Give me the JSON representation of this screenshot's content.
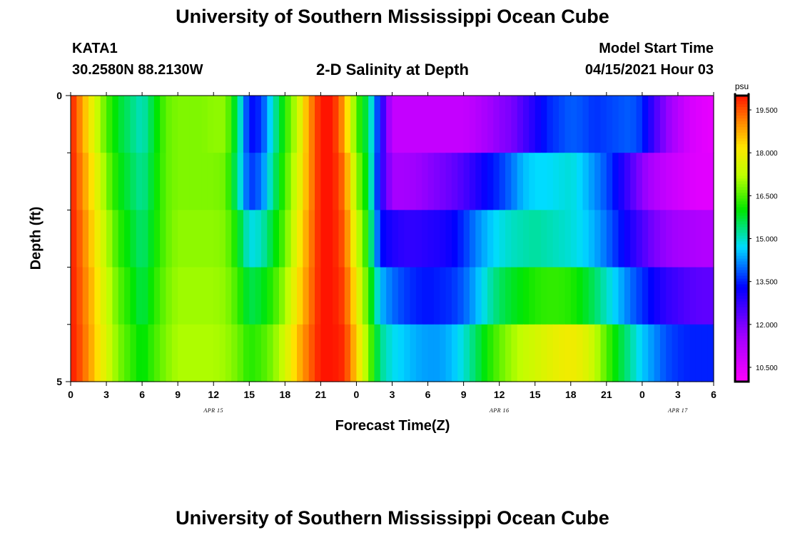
{
  "page": {
    "title_top": "University of Southern Mississippi Ocean Cube",
    "title_bottom": "University of Southern Mississippi Ocean Cube",
    "station_id": "KATA1",
    "station_coords": "30.2580N  88.2130W",
    "plot_title": "2-D Salinity at Depth",
    "model_label": "Model Start Time",
    "model_start": "04/15/2021 Hour 03"
  },
  "chart_data": {
    "type": "heatmap",
    "title": "2-D Salinity at Depth",
    "xlabel": "Forecast Time(Z)",
    "ylabel": "Depth (ft)",
    "x_range_hours": [
      0,
      54
    ],
    "x_ticks": [
      {
        "h": 0,
        "label": "0"
      },
      {
        "h": 3,
        "label": "3"
      },
      {
        "h": 6,
        "label": "6"
      },
      {
        "h": 9,
        "label": "9"
      },
      {
        "h": 12,
        "label": "12"
      },
      {
        "h": 15,
        "label": "15"
      },
      {
        "h": 18,
        "label": "18"
      },
      {
        "h": 21,
        "label": "21"
      },
      {
        "h": 24,
        "label": "0"
      },
      {
        "h": 27,
        "label": "3"
      },
      {
        "h": 30,
        "label": "6"
      },
      {
        "h": 33,
        "label": "9"
      },
      {
        "h": 36,
        "label": "12"
      },
      {
        "h": 39,
        "label": "15"
      },
      {
        "h": 42,
        "label": "18"
      },
      {
        "h": 45,
        "label": "21"
      },
      {
        "h": 48,
        "label": "0"
      },
      {
        "h": 51,
        "label": "3"
      },
      {
        "h": 54,
        "label": "6"
      }
    ],
    "date_labels": [
      {
        "h": 12,
        "label": "APR 15"
      },
      {
        "h": 36,
        "label": "APR 16"
      },
      {
        "h": 51,
        "label": "APR 17"
      }
    ],
    "y_range_ft": [
      0,
      5
    ],
    "y_tick_labels": [
      {
        "ft": 0,
        "label": "0"
      },
      {
        "ft": 5,
        "label": "5"
      }
    ],
    "y_minor_ticks_ft": [
      1,
      2,
      3,
      4
    ],
    "layers_ft": [
      0,
      1,
      2,
      3,
      4,
      5
    ],
    "key_hours": [
      0,
      1,
      2,
      3,
      4,
      6,
      7,
      8,
      9,
      10,
      11,
      12,
      13,
      14,
      15,
      16,
      17,
      18,
      19,
      20,
      21,
      22,
      23,
      24,
      25,
      26,
      27,
      28,
      29,
      30,
      31,
      32,
      33,
      34,
      35,
      36,
      37,
      38,
      39,
      40,
      41,
      42,
      43,
      44,
      45,
      46,
      47,
      48,
      49,
      50,
      51,
      52,
      53,
      54
    ],
    "salinity_psu": [
      [
        20.0,
        18.8,
        17.6,
        16.5,
        15.8,
        15.0,
        15.8,
        16.6,
        16.8,
        16.8,
        16.8,
        16.9,
        16.9,
        15.5,
        13.3,
        13.6,
        15.0,
        16.2,
        17.3,
        18.9,
        20.0,
        20.0,
        18.8,
        16.5,
        15.5,
        13.2,
        11.0,
        11.0,
        11.0,
        11.0,
        11.0,
        11.0,
        11.0,
        11.2,
        11.5,
        11.8,
        12.0,
        12.5,
        13.0,
        13.5,
        13.7,
        13.9,
        13.8,
        13.6,
        13.7,
        13.8,
        13.9,
        13.6,
        12.6,
        11.8,
        11.2,
        10.7,
        10.5,
        10.4
      ],
      [
        20.0,
        19.0,
        18.0,
        16.8,
        16.0,
        15.2,
        15.9,
        16.6,
        16.8,
        16.8,
        16.8,
        16.8,
        16.7,
        15.3,
        13.6,
        14.0,
        15.3,
        16.4,
        17.5,
        18.9,
        20.0,
        20.0,
        19.2,
        17.0,
        15.7,
        13.0,
        11.5,
        11.5,
        11.6,
        11.8,
        12.0,
        12.2,
        12.5,
        12.9,
        13.3,
        13.6,
        14.0,
        14.5,
        14.7,
        14.7,
        14.8,
        14.9,
        14.6,
        14.2,
        13.8,
        13.2,
        12.5,
        11.8,
        11.3,
        11.0,
        10.8,
        10.6,
        10.5,
        10.5
      ],
      [
        20.0,
        19.2,
        18.2,
        17.2,
        16.3,
        15.4,
        16.0,
        16.6,
        16.9,
        16.9,
        16.9,
        16.9,
        16.8,
        16.0,
        14.8,
        15.0,
        15.8,
        16.6,
        17.8,
        19.0,
        20.0,
        20.0,
        19.4,
        17.5,
        16.0,
        13.4,
        13.0,
        12.8,
        12.8,
        12.9,
        13.0,
        13.2,
        13.6,
        14.1,
        14.5,
        14.8,
        15.0,
        15.1,
        15.2,
        15.1,
        15.0,
        14.9,
        14.7,
        14.4,
        14.0,
        13.5,
        13.0,
        12.5,
        12.0,
        11.7,
        11.5,
        11.4,
        11.3,
        11.3
      ],
      [
        20.0,
        19.3,
        18.4,
        17.4,
        16.6,
        15.6,
        16.2,
        16.7,
        17.0,
        17.0,
        17.0,
        17.0,
        16.9,
        16.4,
        15.6,
        15.8,
        16.3,
        17.0,
        18.1,
        19.1,
        20.0,
        20.0,
        19.6,
        18.0,
        16.4,
        14.5,
        14.0,
        13.7,
        13.5,
        13.4,
        13.5,
        13.6,
        13.9,
        14.4,
        15.0,
        15.5,
        15.8,
        16.0,
        16.2,
        16.3,
        16.3,
        16.2,
        15.9,
        15.5,
        15.0,
        14.5,
        14.0,
        13.6,
        13.2,
        12.8,
        12.6,
        12.4,
        12.3,
        12.3
      ],
      [
        20.0,
        19.4,
        18.5,
        17.6,
        16.8,
        15.9,
        16.4,
        16.8,
        17.1,
        17.1,
        17.1,
        17.1,
        17.0,
        16.7,
        16.2,
        16.4,
        16.8,
        17.5,
        18.5,
        19.3,
        20.0,
        20.0,
        19.8,
        18.4,
        16.8,
        15.3,
        14.8,
        14.6,
        14.4,
        14.3,
        14.3,
        14.5,
        14.9,
        15.5,
        16.1,
        16.6,
        17.0,
        17.3,
        17.5,
        17.7,
        17.9,
        18.0,
        17.8,
        17.3,
        16.5,
        15.8,
        15.2,
        14.6,
        14.2,
        13.8,
        13.6,
        13.5,
        13.5,
        13.5
      ]
    ],
    "colorbar": {
      "unit": "psu",
      "min": 10.0,
      "max": 20.0,
      "tick_values": [
        19.5,
        18.0,
        16.5,
        15.0,
        13.5,
        12.0,
        10.5
      ],
      "tick_labels": [
        "19.500",
        "18.000",
        "16.500",
        "15.000",
        "13.500",
        "12.000",
        "10.500"
      ]
    }
  }
}
